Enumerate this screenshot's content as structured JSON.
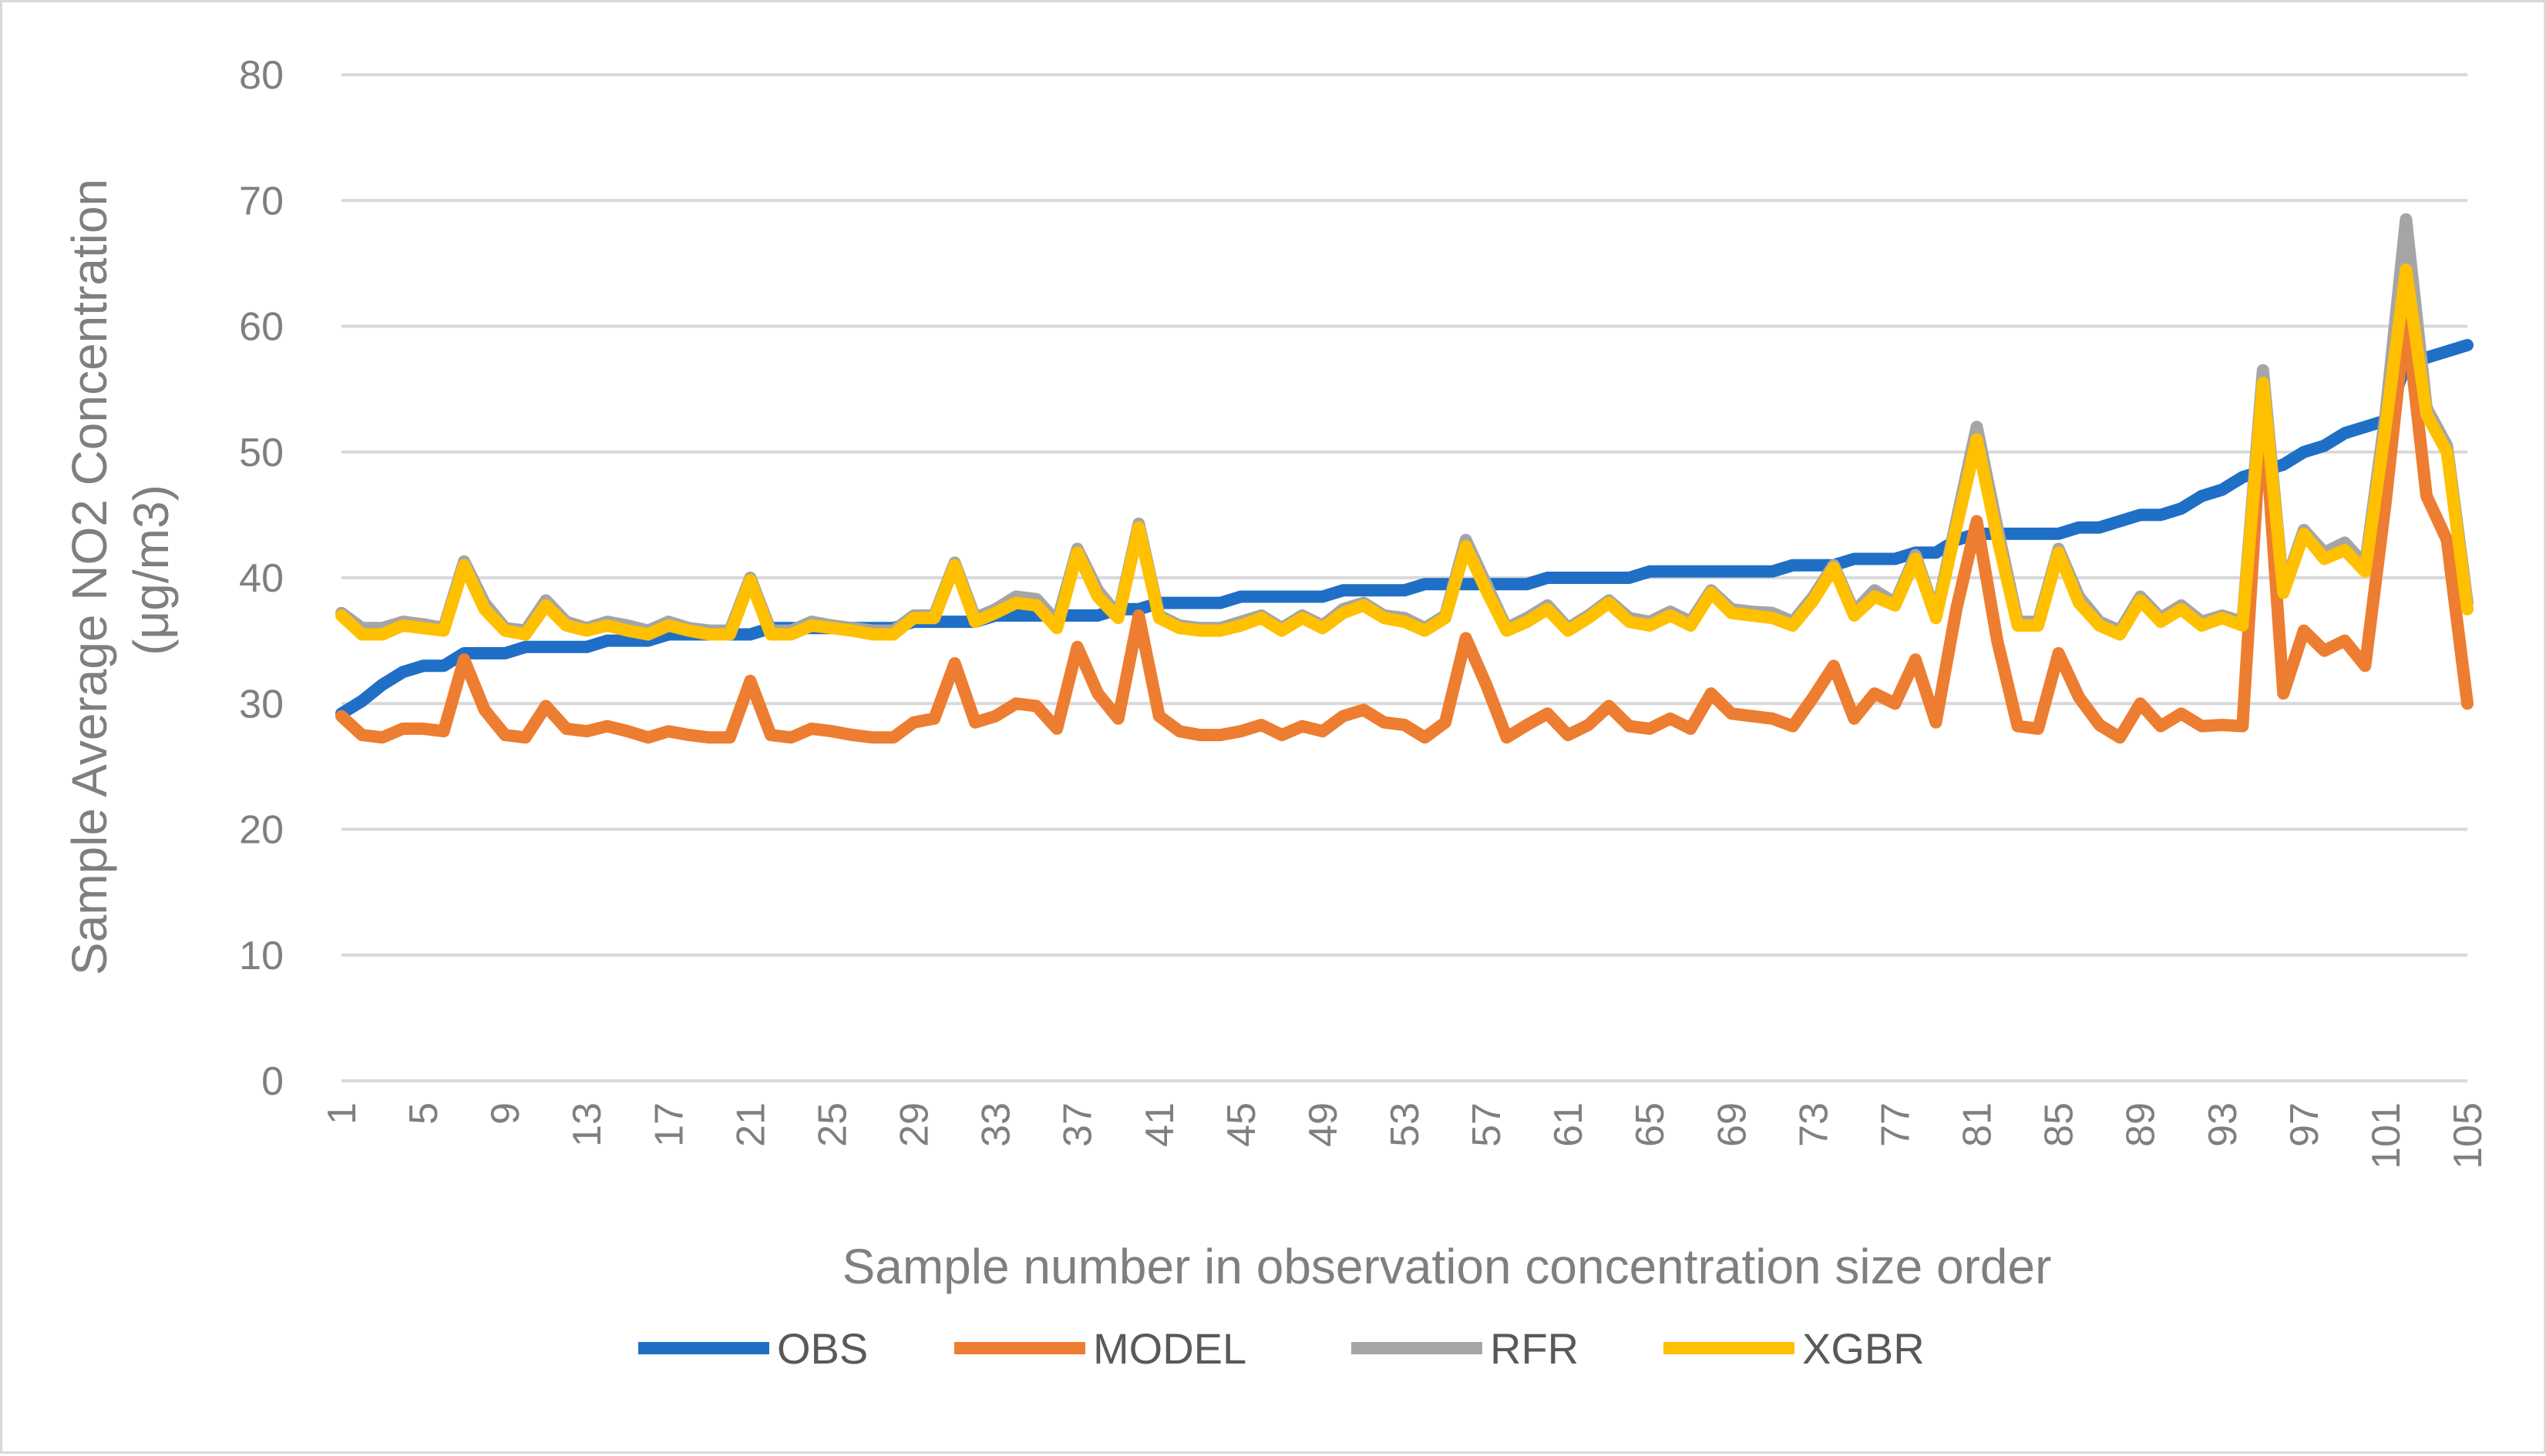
{
  "chart_data": {
    "type": "line",
    "title": "",
    "xlabel": "Sample number in observation concentration size order",
    "ylabel_lines": [
      "Sample Average NO2 Concentration",
      "(μg/m3)"
    ],
    "ylim": [
      0,
      80
    ],
    "yticks": [
      0,
      10,
      20,
      30,
      40,
      50,
      60,
      70,
      80
    ],
    "grid": true,
    "legend_position": "bottom",
    "x": [
      1,
      2,
      3,
      4,
      5,
      6,
      7,
      8,
      9,
      10,
      11,
      12,
      13,
      14,
      15,
      16,
      17,
      18,
      19,
      20,
      21,
      22,
      23,
      24,
      25,
      26,
      27,
      28,
      29,
      30,
      31,
      32,
      33,
      34,
      35,
      36,
      37,
      38,
      39,
      40,
      41,
      42,
      43,
      44,
      45,
      46,
      47,
      48,
      49,
      50,
      51,
      52,
      53,
      54,
      55,
      56,
      57,
      58,
      59,
      60,
      61,
      62,
      63,
      64,
      65,
      66,
      67,
      68,
      69,
      70,
      71,
      72,
      73,
      74,
      75,
      76,
      77,
      78,
      79,
      80,
      81,
      82,
      83,
      84,
      85,
      86,
      87,
      88,
      89,
      90,
      91,
      92,
      93,
      94,
      95,
      96,
      97,
      98,
      99,
      100,
      101,
      102,
      103,
      104,
      105
    ],
    "xtick_labels": [
      "1",
      "5",
      "9",
      "13",
      "17",
      "21",
      "25",
      "29",
      "33",
      "37",
      "41",
      "45",
      "49",
      "53",
      "57",
      "61",
      "65",
      "69",
      "73",
      "77",
      "81",
      "85",
      "89",
      "93",
      "97",
      "101",
      "105"
    ],
    "series": [
      {
        "name": "OBS",
        "color": "#1f6fc6",
        "values": [
          29.2,
          30.2,
          31.5,
          32.5,
          33.0,
          33.0,
          34.0,
          34.0,
          34.0,
          34.5,
          34.5,
          34.5,
          34.5,
          35.0,
          35.0,
          35.0,
          35.5,
          35.5,
          35.5,
          35.5,
          35.5,
          36.0,
          36.0,
          36.0,
          36.0,
          36.0,
          36.0,
          36.0,
          36.5,
          36.5,
          36.5,
          36.5,
          37.0,
          37.0,
          37.0,
          37.0,
          37.0,
          37.0,
          37.5,
          37.5,
          38.0,
          38.0,
          38.0,
          38.0,
          38.5,
          38.5,
          38.5,
          38.5,
          38.5,
          39.0,
          39.0,
          39.0,
          39.0,
          39.5,
          39.5,
          39.5,
          39.5,
          39.5,
          39.5,
          40.0,
          40.0,
          40.0,
          40.0,
          40.0,
          40.5,
          40.5,
          40.5,
          40.5,
          40.5,
          40.5,
          40.5,
          41.0,
          41.0,
          41.0,
          41.5,
          41.5,
          41.5,
          42.0,
          42.0,
          43.0,
          43.5,
          43.5,
          43.5,
          43.5,
          43.5,
          44.0,
          44.0,
          44.5,
          45.0,
          45.0,
          45.5,
          46.5,
          47.0,
          48.0,
          48.5,
          49.0,
          50.0,
          50.5,
          51.5,
          52.0,
          52.5,
          57.0,
          57.5,
          58.0,
          58.5
        ]
      },
      {
        "name": "MODEL",
        "color": "#ed7d31",
        "values": [
          29.0,
          27.5,
          27.3,
          28.0,
          28.0,
          27.8,
          33.5,
          29.5,
          27.5,
          27.3,
          29.8,
          28.0,
          27.8,
          28.2,
          27.8,
          27.3,
          27.8,
          27.5,
          27.3,
          27.3,
          31.8,
          27.5,
          27.3,
          28.0,
          27.8,
          27.5,
          27.3,
          27.3,
          28.5,
          28.8,
          33.2,
          28.5,
          29.0,
          30.0,
          29.8,
          28.0,
          34.5,
          30.8,
          28.8,
          37.0,
          29.0,
          27.8,
          27.5,
          27.5,
          27.8,
          28.3,
          27.5,
          28.2,
          27.8,
          29.0,
          29.5,
          28.5,
          28.3,
          27.3,
          28.5,
          35.2,
          31.5,
          27.3,
          28.3,
          29.2,
          27.5,
          28.3,
          29.8,
          28.2,
          28.0,
          28.8,
          28.0,
          30.8,
          29.2,
          29.0,
          28.8,
          28.2,
          30.5,
          33.0,
          28.8,
          30.8,
          30.0,
          33.5,
          28.5,
          37.5,
          44.5,
          35.0,
          28.2,
          28.0,
          34.0,
          30.5,
          28.3,
          27.3,
          30.0,
          28.2,
          29.2,
          28.2,
          28.3,
          28.2,
          54.5,
          30.8,
          35.8,
          34.2,
          35.0,
          33.0,
          46.0,
          61.0,
          46.5,
          43.0,
          30.0
        ]
      },
      {
        "name": "RFR",
        "color": "#a5a5a5",
        "values": [
          37.2,
          36.0,
          36.0,
          36.5,
          36.3,
          36.0,
          41.3,
          38.0,
          36.0,
          35.8,
          38.2,
          36.5,
          36.0,
          36.5,
          36.2,
          35.8,
          36.5,
          36.0,
          35.8,
          35.8,
          40.0,
          35.8,
          35.8,
          36.5,
          36.2,
          36.0,
          35.8,
          35.8,
          37.0,
          37.0,
          41.2,
          36.8,
          37.5,
          38.5,
          38.3,
          36.5,
          42.3,
          39.0,
          37.0,
          44.3,
          37.0,
          36.2,
          36.0,
          36.0,
          36.5,
          37.0,
          36.0,
          37.0,
          36.2,
          37.5,
          38.0,
          37.0,
          36.8,
          36.0,
          37.0,
          43.0,
          39.5,
          36.0,
          36.8,
          37.8,
          36.0,
          37.0,
          38.2,
          36.8,
          36.5,
          37.3,
          36.5,
          39.0,
          37.5,
          37.3,
          37.2,
          36.5,
          38.5,
          41.0,
          37.3,
          39.0,
          38.0,
          41.8,
          37.0,
          44.5,
          52.0,
          44.0,
          36.5,
          36.5,
          42.3,
          38.5,
          36.5,
          35.8,
          38.5,
          36.8,
          37.8,
          36.5,
          37.0,
          36.5,
          56.5,
          39.0,
          43.8,
          42.0,
          42.8,
          41.0,
          53.0,
          68.5,
          53.5,
          50.5,
          38.0
        ]
      },
      {
        "name": "XGBR",
        "color": "#ffc000",
        "values": [
          37.0,
          35.5,
          35.5,
          36.2,
          36.0,
          35.8,
          41.0,
          37.5,
          35.8,
          35.5,
          37.8,
          36.2,
          35.8,
          36.2,
          35.8,
          35.5,
          36.2,
          35.8,
          35.5,
          35.5,
          39.8,
          35.5,
          35.5,
          36.2,
          36.0,
          35.8,
          35.5,
          35.5,
          36.8,
          36.8,
          41.0,
          36.5,
          37.2,
          38.0,
          37.8,
          36.0,
          42.0,
          38.5,
          36.8,
          44.0,
          36.8,
          36.0,
          35.8,
          35.8,
          36.2,
          36.8,
          35.8,
          36.8,
          36.0,
          37.2,
          37.8,
          36.8,
          36.5,
          35.8,
          36.8,
          42.5,
          39.0,
          35.8,
          36.5,
          37.5,
          35.8,
          36.8,
          38.0,
          36.5,
          36.2,
          37.0,
          36.2,
          38.8,
          37.2,
          37.0,
          36.8,
          36.2,
          38.2,
          40.8,
          37.0,
          38.5,
          37.8,
          41.5,
          36.8,
          44.0,
          51.0,
          43.2,
          36.2,
          36.2,
          42.0,
          38.0,
          36.2,
          35.5,
          38.2,
          36.5,
          37.5,
          36.2,
          36.8,
          36.2,
          55.5,
          38.8,
          43.5,
          41.5,
          42.2,
          40.5,
          52.0,
          64.5,
          53.0,
          50.0,
          37.5
        ]
      }
    ]
  }
}
